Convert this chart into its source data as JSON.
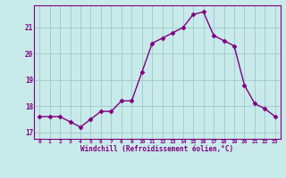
{
  "x": [
    0,
    1,
    2,
    3,
    4,
    5,
    6,
    7,
    8,
    9,
    10,
    11,
    12,
    13,
    14,
    15,
    16,
    17,
    18,
    19,
    20,
    21,
    22,
    23
  ],
  "y": [
    17.6,
    17.6,
    17.6,
    17.4,
    17.2,
    17.5,
    17.8,
    17.8,
    18.2,
    18.2,
    19.3,
    20.4,
    20.6,
    20.8,
    21.0,
    21.5,
    21.6,
    20.7,
    20.5,
    20.3,
    18.8,
    18.1,
    17.9,
    17.6
  ],
  "line_color": "#800080",
  "marker": "D",
  "markersize": 2.5,
  "linewidth": 1.0,
  "bg_color": "#c8eaea",
  "grid_color": "#a0c8c8",
  "xlabel": "Windchill (Refroidissement éolien,°C)",
  "xlim": [
    -0.5,
    23.5
  ],
  "ylim": [
    16.75,
    21.85
  ],
  "yticks": [
    17,
    18,
    19,
    20,
    21
  ],
  "xticks": [
    0,
    1,
    2,
    3,
    4,
    5,
    6,
    7,
    8,
    9,
    10,
    11,
    12,
    13,
    14,
    15,
    16,
    17,
    18,
    19,
    20,
    21,
    22,
    23
  ],
  "tick_color": "#800080",
  "label_color": "#800080",
  "spine_color": "#800080"
}
